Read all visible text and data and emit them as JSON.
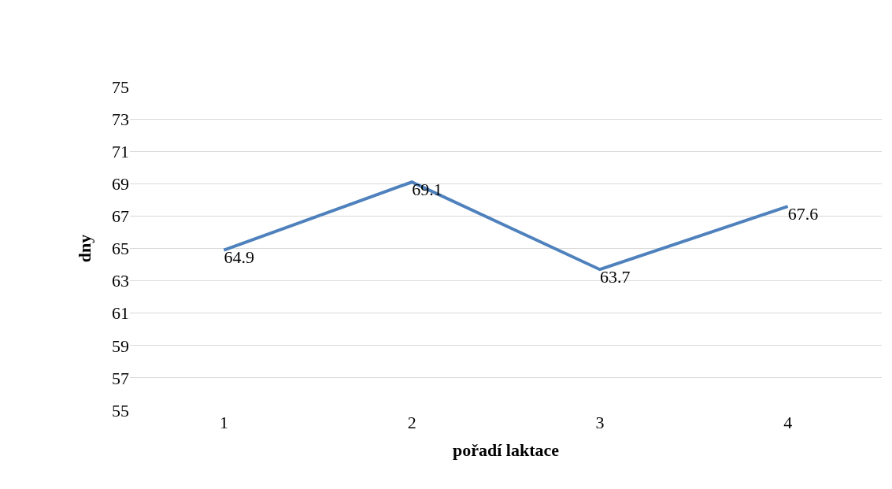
{
  "chart_data": {
    "type": "line",
    "xlabel": "pořadí laktace",
    "ylabel": "dny",
    "categories": [
      "1",
      "2",
      "3",
      "4"
    ],
    "series": [
      {
        "color": "#4f81bd",
        "values": [
          64.9,
          69.1,
          63.7,
          67.6
        ]
      }
    ],
    "ylim": [
      55,
      75
    ],
    "yticks": [
      55,
      57,
      59,
      61,
      63,
      65,
      67,
      69,
      71,
      73,
      75
    ],
    "grid": "y",
    "marker": "none",
    "line_style": "solid",
    "data_labels": true
  }
}
